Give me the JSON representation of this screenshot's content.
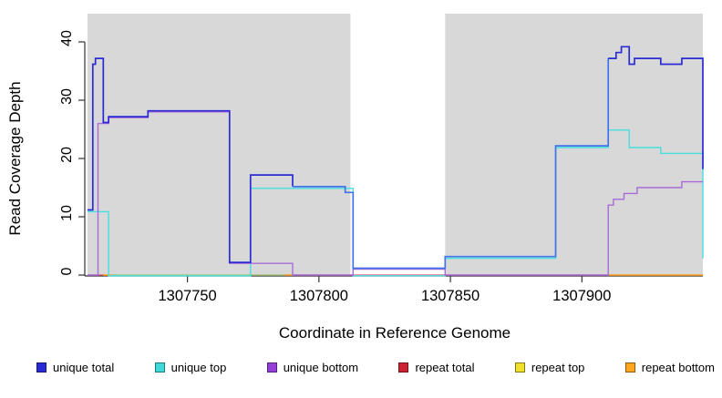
{
  "chart_data": {
    "type": "line",
    "subtype": "step-coverage-plot",
    "title": "",
    "xlabel": "Coordinate in Reference Genome",
    "ylabel": "Read Coverage Depth",
    "xlim": [
      1307712,
      1307946
    ],
    "ylim": [
      0,
      44
    ],
    "xticks": [
      1307750,
      1307800,
      1307850,
      1307900
    ],
    "yticks": [
      0,
      10,
      20,
      30,
      40
    ],
    "grid": false,
    "panel_color": "#D8D8D8",
    "gap_color": "#FFFFFF",
    "background_bands": [
      {
        "x0": 1307712,
        "x1": 1307812,
        "color": "#D8D8D8"
      },
      {
        "x0": 1307812,
        "x1": 1307848,
        "color": "#FFFFFF"
      },
      {
        "x0": 1307848,
        "x1": 1307946,
        "color": "#D8D8D8"
      }
    ],
    "series": [
      {
        "name": "repeat total",
        "color": "#E04E74",
        "width": 1.3,
        "dy": 0,
        "paths": [
          {
            "pts": [
              [
                1307712,
                0
              ],
              [
                1307946,
                0
              ]
            ]
          }
        ]
      },
      {
        "name": "repeat top",
        "color": "#9CD87A",
        "width": 1.3,
        "dy": 0,
        "paths": [
          {
            "pts": [
              [
                1307721,
                0
              ],
              [
                1307787,
                0
              ]
            ]
          }
        ]
      },
      {
        "name": "repeat bottom",
        "color": "#FFA51E",
        "width": 1.5,
        "dy": 0,
        "paths": [
          {
            "pts": [
              [
                1307718,
                0
              ],
              [
                1307721,
                0
              ]
            ]
          },
          {
            "pts": [
              [
                1307787,
                0
              ],
              [
                1307790,
                0
              ]
            ]
          },
          {
            "pts": [
              [
                1307910,
                0
              ],
              [
                1307946,
                0
              ]
            ]
          }
        ]
      },
      {
        "name": "unique top",
        "color": "#45DFE0",
        "width": 1.4,
        "dy": 0.8,
        "paths": [
          {
            "pts": [
              [
                1307712,
                11
              ],
              [
                1307720,
                11
              ],
              [
                1307720,
                0
              ],
              [
                1307774,
                0
              ],
              [
                1307774,
                15
              ],
              [
                1307813,
                15
              ],
              [
                1307813,
                0
              ],
              [
                1307848,
                0
              ],
              [
                1307848,
                3
              ],
              [
                1307890,
                3
              ],
              [
                1307890,
                22
              ],
              [
                1307910,
                22
              ],
              [
                1307910,
                25
              ],
              [
                1307918,
                25
              ],
              [
                1307918,
                22
              ],
              [
                1307930,
                22
              ],
              [
                1307930,
                21
              ],
              [
                1307946,
                21
              ],
              [
                1307946,
                3
              ]
            ]
          }
        ]
      },
      {
        "name": "unique bottom",
        "color": "#A86BD8",
        "width": 1.4,
        "dy": 0,
        "paths": [
          {
            "pts": [
              [
                1307712,
                0
              ],
              [
                1307716,
                0
              ],
              [
                1307716,
                26
              ],
              [
                1307720,
                26
              ],
              [
                1307720,
                27
              ],
              [
                1307735,
                27
              ],
              [
                1307735,
                28
              ],
              [
                1307766,
                28
              ],
              [
                1307766,
                2
              ],
              [
                1307790,
                2
              ],
              [
                1307790,
                0
              ],
              [
                1307813,
                0
              ],
              [
                1307813,
                1
              ],
              [
                1307848,
                1
              ],
              [
                1307848,
                0
              ],
              [
                1307910,
                0
              ],
              [
                1307910,
                12
              ],
              [
                1307912,
                12
              ],
              [
                1307912,
                13
              ],
              [
                1307916,
                13
              ],
              [
                1307916,
                14
              ],
              [
                1307921,
                14
              ],
              [
                1307921,
                15
              ],
              [
                1307938,
                15
              ],
              [
                1307938,
                16
              ],
              [
                1307946,
                16
              ]
            ]
          }
        ]
      },
      {
        "name": "unique total",
        "color": "#2B2BD5",
        "width": 1.7,
        "dy": -1.1,
        "paths": [
          {
            "color": "#2B2BD5",
            "pts": [
              [
                1307712,
                11
              ],
              [
                1307714,
                11
              ],
              [
                1307714,
                36
              ],
              [
                1307715,
                36
              ],
              [
                1307715,
                37
              ],
              [
                1307718,
                37
              ],
              [
                1307718,
                26
              ],
              [
                1307720,
                26
              ],
              [
                1307720,
                27
              ],
              [
                1307735,
                27
              ],
              [
                1307735,
                28
              ],
              [
                1307766,
                28
              ],
              [
                1307766,
                2
              ],
              [
                1307774,
                2
              ],
              [
                1307774,
                17
              ],
              [
                1307790,
                17
              ],
              [
                1307790,
                15
              ]
            ]
          },
          {
            "color": "#4373E8",
            "pts": [
              [
                1307790,
                15
              ],
              [
                1307810,
                15
              ],
              [
                1307810,
                14
              ],
              [
                1307813,
                14
              ],
              [
                1307813,
                1
              ],
              [
                1307848,
                1
              ],
              [
                1307848,
                3
              ],
              [
                1307890,
                3
              ],
              [
                1307890,
                22
              ],
              [
                1307910,
                22
              ],
              [
                1307910,
                37
              ]
            ]
          },
          {
            "color": "#2B2BD5",
            "pts": [
              [
                1307910,
                37
              ],
              [
                1307913,
                37
              ],
              [
                1307913,
                38
              ],
              [
                1307915,
                38
              ],
              [
                1307915,
                39
              ],
              [
                1307918,
                39
              ],
              [
                1307918,
                36
              ],
              [
                1307920,
                36
              ],
              [
                1307920,
                37
              ],
              [
                1307930,
                37
              ],
              [
                1307930,
                36
              ],
              [
                1307938,
                36
              ],
              [
                1307938,
                37
              ],
              [
                1307946,
                37
              ],
              [
                1307946,
                18
              ]
            ]
          }
        ]
      }
    ],
    "legend": [
      {
        "label": "unique total",
        "color": "#2B2BD5"
      },
      {
        "label": "unique top",
        "color": "#3FD9D9"
      },
      {
        "label": "unique bottom",
        "color": "#9440D8"
      },
      {
        "label": "repeat total",
        "color": "#CC2233"
      },
      {
        "label": "repeat top",
        "color": "#F0E02A"
      },
      {
        "label": "repeat bottom",
        "color": "#FFA51E"
      }
    ],
    "legend_position": "bottom"
  }
}
